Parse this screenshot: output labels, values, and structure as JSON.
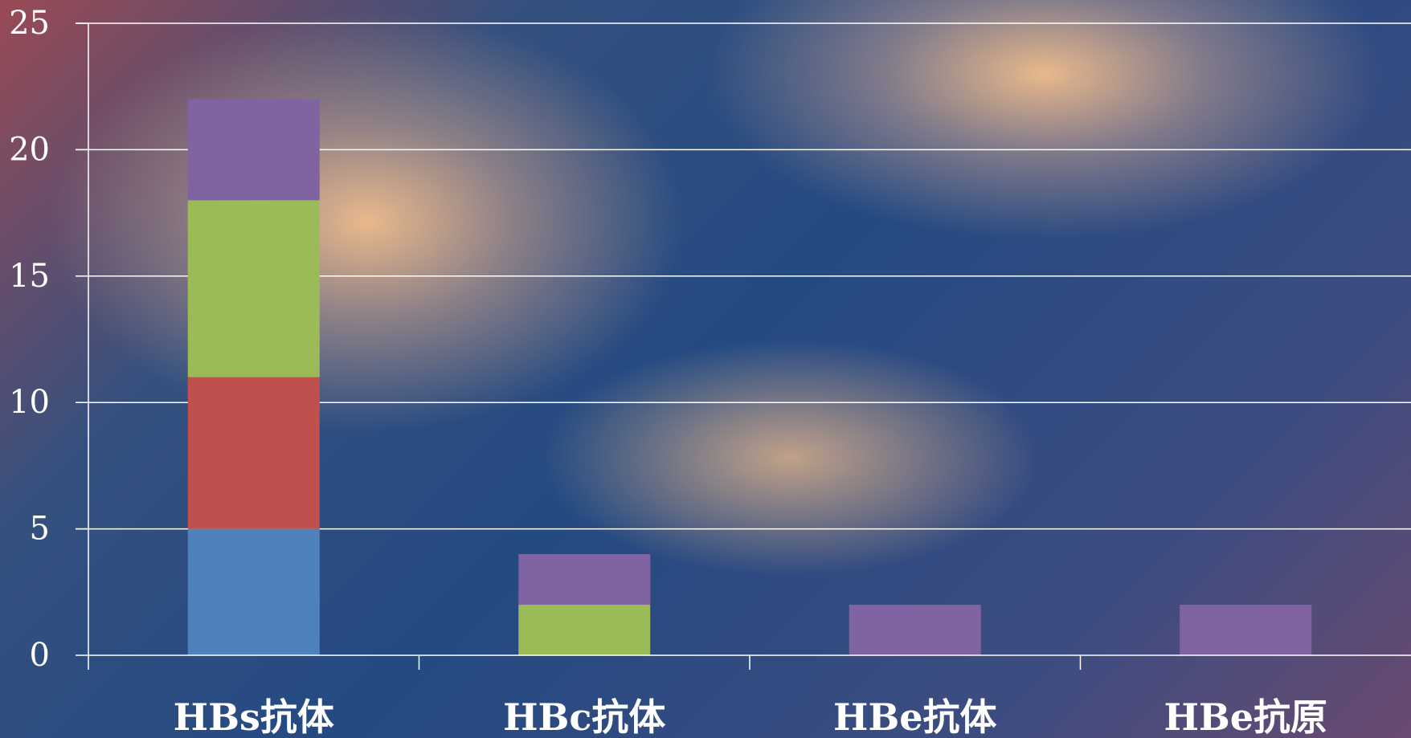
{
  "chart_data": {
    "type": "bar",
    "stacked": true,
    "categories": [
      "HBs抗体",
      "HBc抗体",
      "HBe抗体",
      "HBe抗原"
    ],
    "series": [
      {
        "color": "#4f81bd",
        "values": [
          5,
          0,
          0,
          0
        ]
      },
      {
        "color": "#c0504d",
        "values": [
          6,
          0,
          0,
          0
        ]
      },
      {
        "color": "#9bbb59",
        "values": [
          7,
          2,
          0,
          0
        ]
      },
      {
        "color": "#8064a2",
        "values": [
          4,
          2,
          2,
          2
        ]
      }
    ],
    "yticks": [
      "0",
      "5",
      "10",
      "15",
      "20",
      "25"
    ],
    "ylim": [
      0,
      25
    ],
    "grid": true,
    "legend": "none",
    "title": "",
    "xlabel": "",
    "ylabel": ""
  }
}
